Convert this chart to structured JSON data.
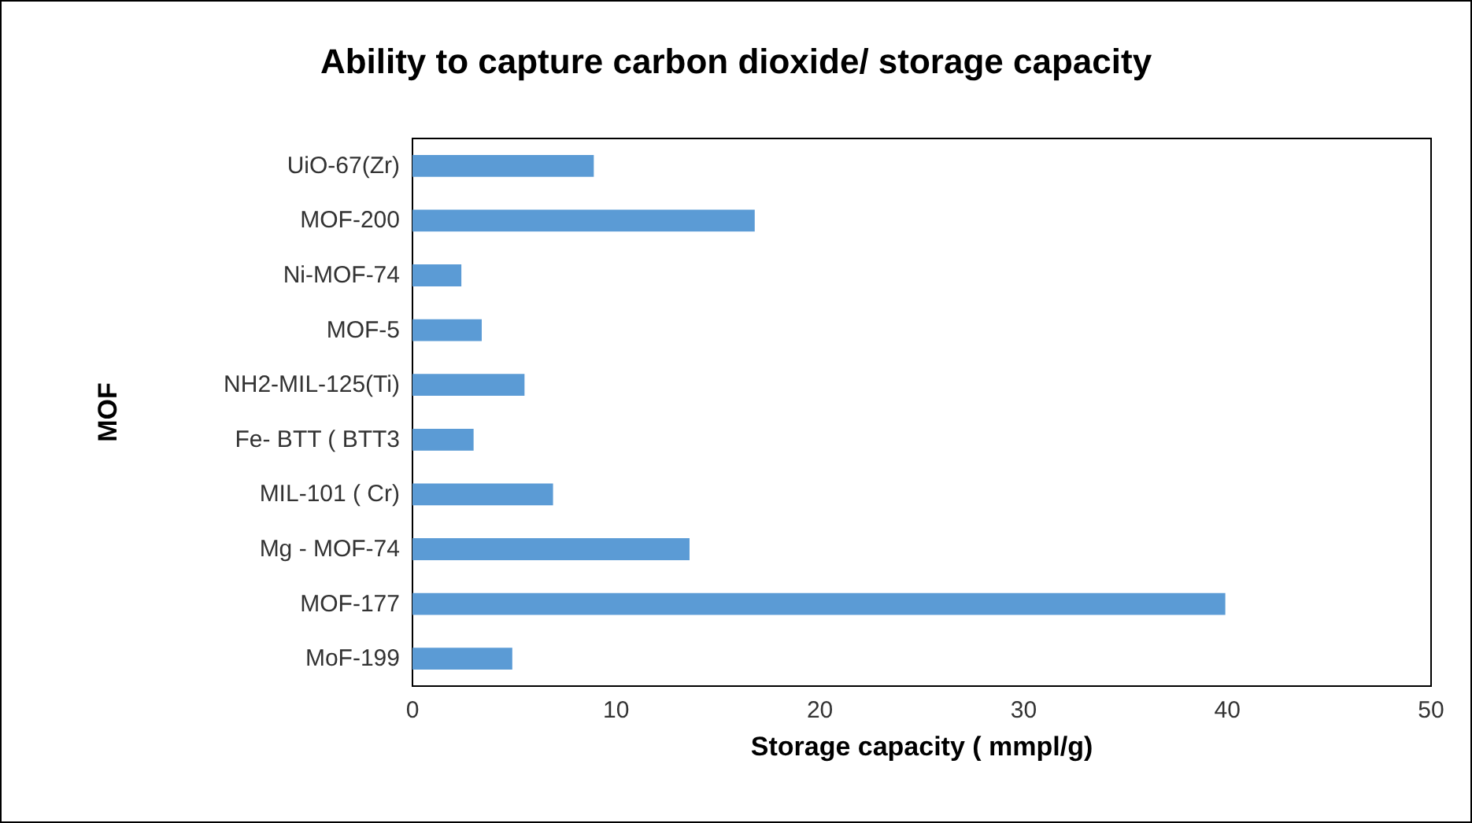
{
  "chart_data": {
    "type": "bar",
    "orientation": "horizontal",
    "title": "Ability to capture carbon dioxide/ storage capacity",
    "xlabel": "Storage capacity ( mmpl/g)",
    "ylabel": "MOF",
    "categories": [
      "UiO-67(Zr)",
      "MOF-200",
      "Ni-MOF-74",
      "MOF-5",
      "NH2-MIL-125(Ti)",
      "Fe- BTT ( BTT3",
      "MIL-101 ( Cr)",
      "Mg - MOF-74",
      "MOF-177",
      "MoF-199"
    ],
    "values": [
      8.9,
      16.8,
      2.4,
      3.4,
      5.5,
      3.0,
      6.9,
      13.6,
      39.9,
      4.9
    ],
    "color": "#5b9bd5",
    "xlim": [
      0,
      50
    ],
    "xticks": [
      0,
      10,
      20,
      30,
      40,
      50
    ],
    "grid": false
  }
}
